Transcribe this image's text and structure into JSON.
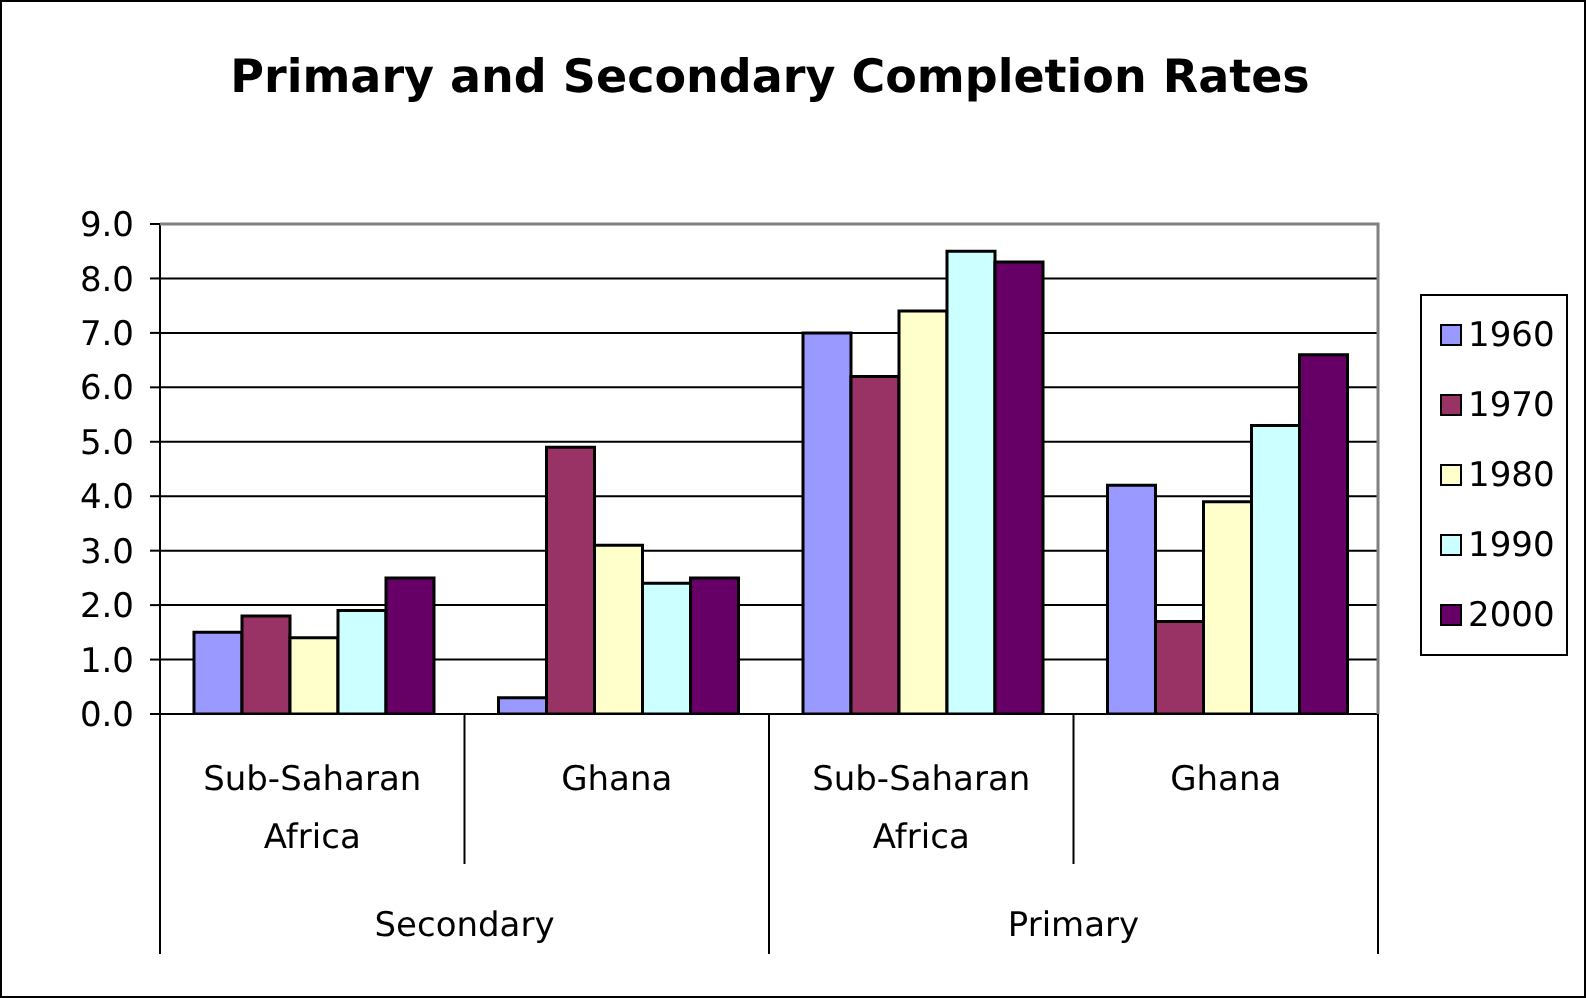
{
  "chart_data": {
    "type": "bar",
    "title": "Primary and Secondary Completion Rates",
    "categories": [
      "Sub-Saharan Africa",
      "Ghana",
      "Sub-Saharan Africa",
      "Ghana"
    ],
    "annotations": [
      "Secondary",
      "Primary"
    ],
    "series": [
      {
        "name": "1960",
        "color": "#9999ff",
        "values": [
          1.5,
          0.3,
          7.0,
          4.2
        ]
      },
      {
        "name": "1970",
        "color": "#993366",
        "values": [
          1.8,
          4.9,
          6.2,
          1.7
        ]
      },
      {
        "name": "1980",
        "color": "#ffffcc",
        "values": [
          1.4,
          3.1,
          7.4,
          3.9
        ]
      },
      {
        "name": "1990",
        "color": "#ccffff",
        "values": [
          1.9,
          2.4,
          8.5,
          5.3
        ]
      },
      {
        "name": "2000",
        "color": "#660066",
        "values": [
          2.5,
          2.5,
          8.3,
          6.6
        ]
      }
    ],
    "ylim": [
      0,
      9
    ],
    "yticks": [
      {
        "value": 0,
        "label": "0.0"
      },
      {
        "value": 1,
        "label": "1.0"
      },
      {
        "value": 2,
        "label": "2.0"
      },
      {
        "value": 3,
        "label": "3.0"
      },
      {
        "value": 4,
        "label": "4.0"
      },
      {
        "value": 5,
        "label": "5.0"
      },
      {
        "value": 6,
        "label": "6.0"
      },
      {
        "value": 7,
        "label": "7.0"
      },
      {
        "value": 8,
        "label": "8.0"
      },
      {
        "value": 9,
        "label": "9.0"
      }
    ],
    "grid": "y",
    "legend": "right"
  }
}
